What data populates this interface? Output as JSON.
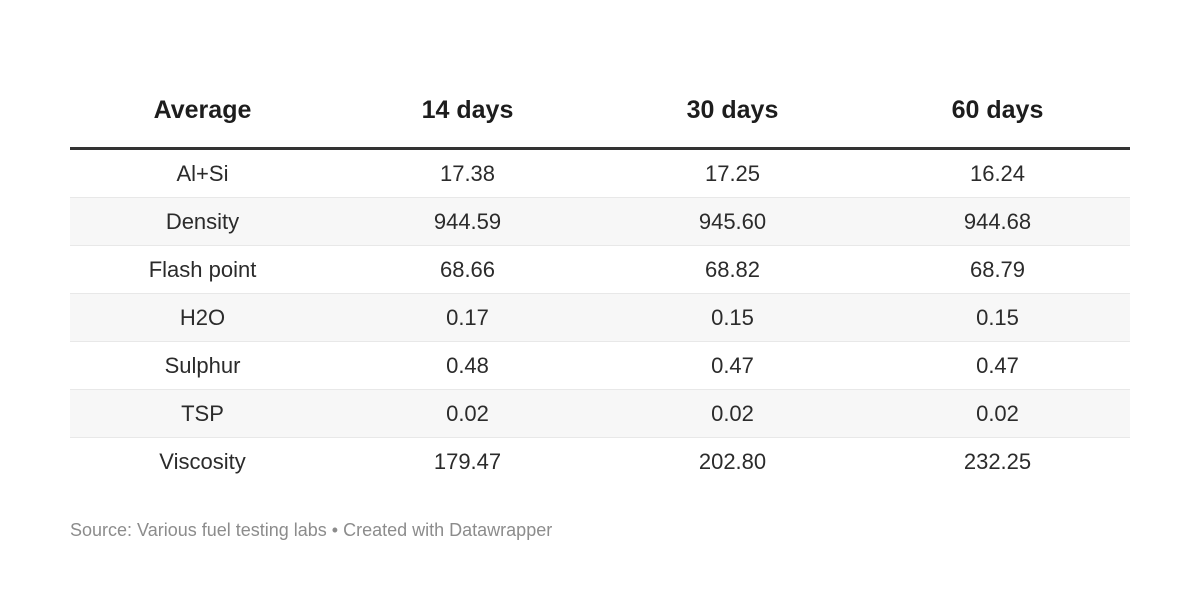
{
  "chart_data": {
    "type": "table",
    "columns": [
      "Average",
      "14 days",
      "30 days",
      "60 days"
    ],
    "rows": [
      {
        "label": "Al+Si",
        "values": [
          "17.38",
          "17.25",
          "16.24"
        ]
      },
      {
        "label": "Density",
        "values": [
          "944.59",
          "945.60",
          "944.68"
        ]
      },
      {
        "label": "Flash point",
        "values": [
          "68.66",
          "68.82",
          "68.79"
        ]
      },
      {
        "label": "H2O",
        "values": [
          "0.17",
          "0.15",
          "0.15"
        ]
      },
      {
        "label": "Sulphur",
        "values": [
          "0.48",
          "0.47",
          "0.47"
        ]
      },
      {
        "label": "TSP",
        "values": [
          "0.02",
          "0.02",
          "0.02"
        ]
      },
      {
        "label": "Viscosity",
        "values": [
          "179.47",
          "202.80",
          "232.25"
        ]
      }
    ],
    "layout": {
      "striped_rows": true,
      "header_rule": true,
      "cell_alignment": "center",
      "grid": "horizontal-only"
    }
  },
  "footer": {
    "source_text": "Source: Various fuel testing labs • Created with Datawrapper"
  },
  "colors": {
    "background": "#ffffff",
    "header_text": "#1d1d1d",
    "body_text": "#2b2b2b",
    "row_stripe": "#f7f7f7",
    "row_border": "#e8e8e8",
    "header_rule": "#333333",
    "footer_text": "#8c8c8c"
  }
}
